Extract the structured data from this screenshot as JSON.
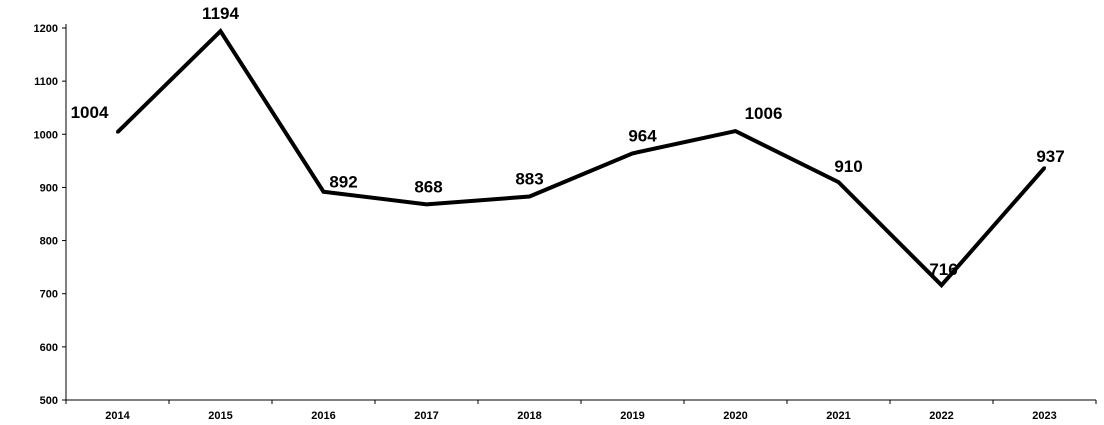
{
  "chart_data": {
    "type": "line",
    "title": "",
    "xlabel": "",
    "ylabel": "",
    "categories": [
      "2014",
      "2015",
      "2016",
      "2017",
      "2018",
      "2019",
      "2020",
      "2021",
      "2022",
      "2023"
    ],
    "series": [
      {
        "values": [
          1004,
          1194,
          892,
          868,
          883,
          964,
          1006,
          910,
          716,
          937
        ],
        "color": "#000000"
      }
    ],
    "ylim": [
      500,
      1200
    ],
    "yticks": [
      500,
      600,
      700,
      800,
      900,
      1000,
      1100,
      1200
    ],
    "data_labels": [
      "1004",
      "1194",
      "892",
      "868",
      "883",
      "964",
      "1006",
      "910",
      "716",
      "937"
    ],
    "grid": false,
    "legend": "none"
  }
}
